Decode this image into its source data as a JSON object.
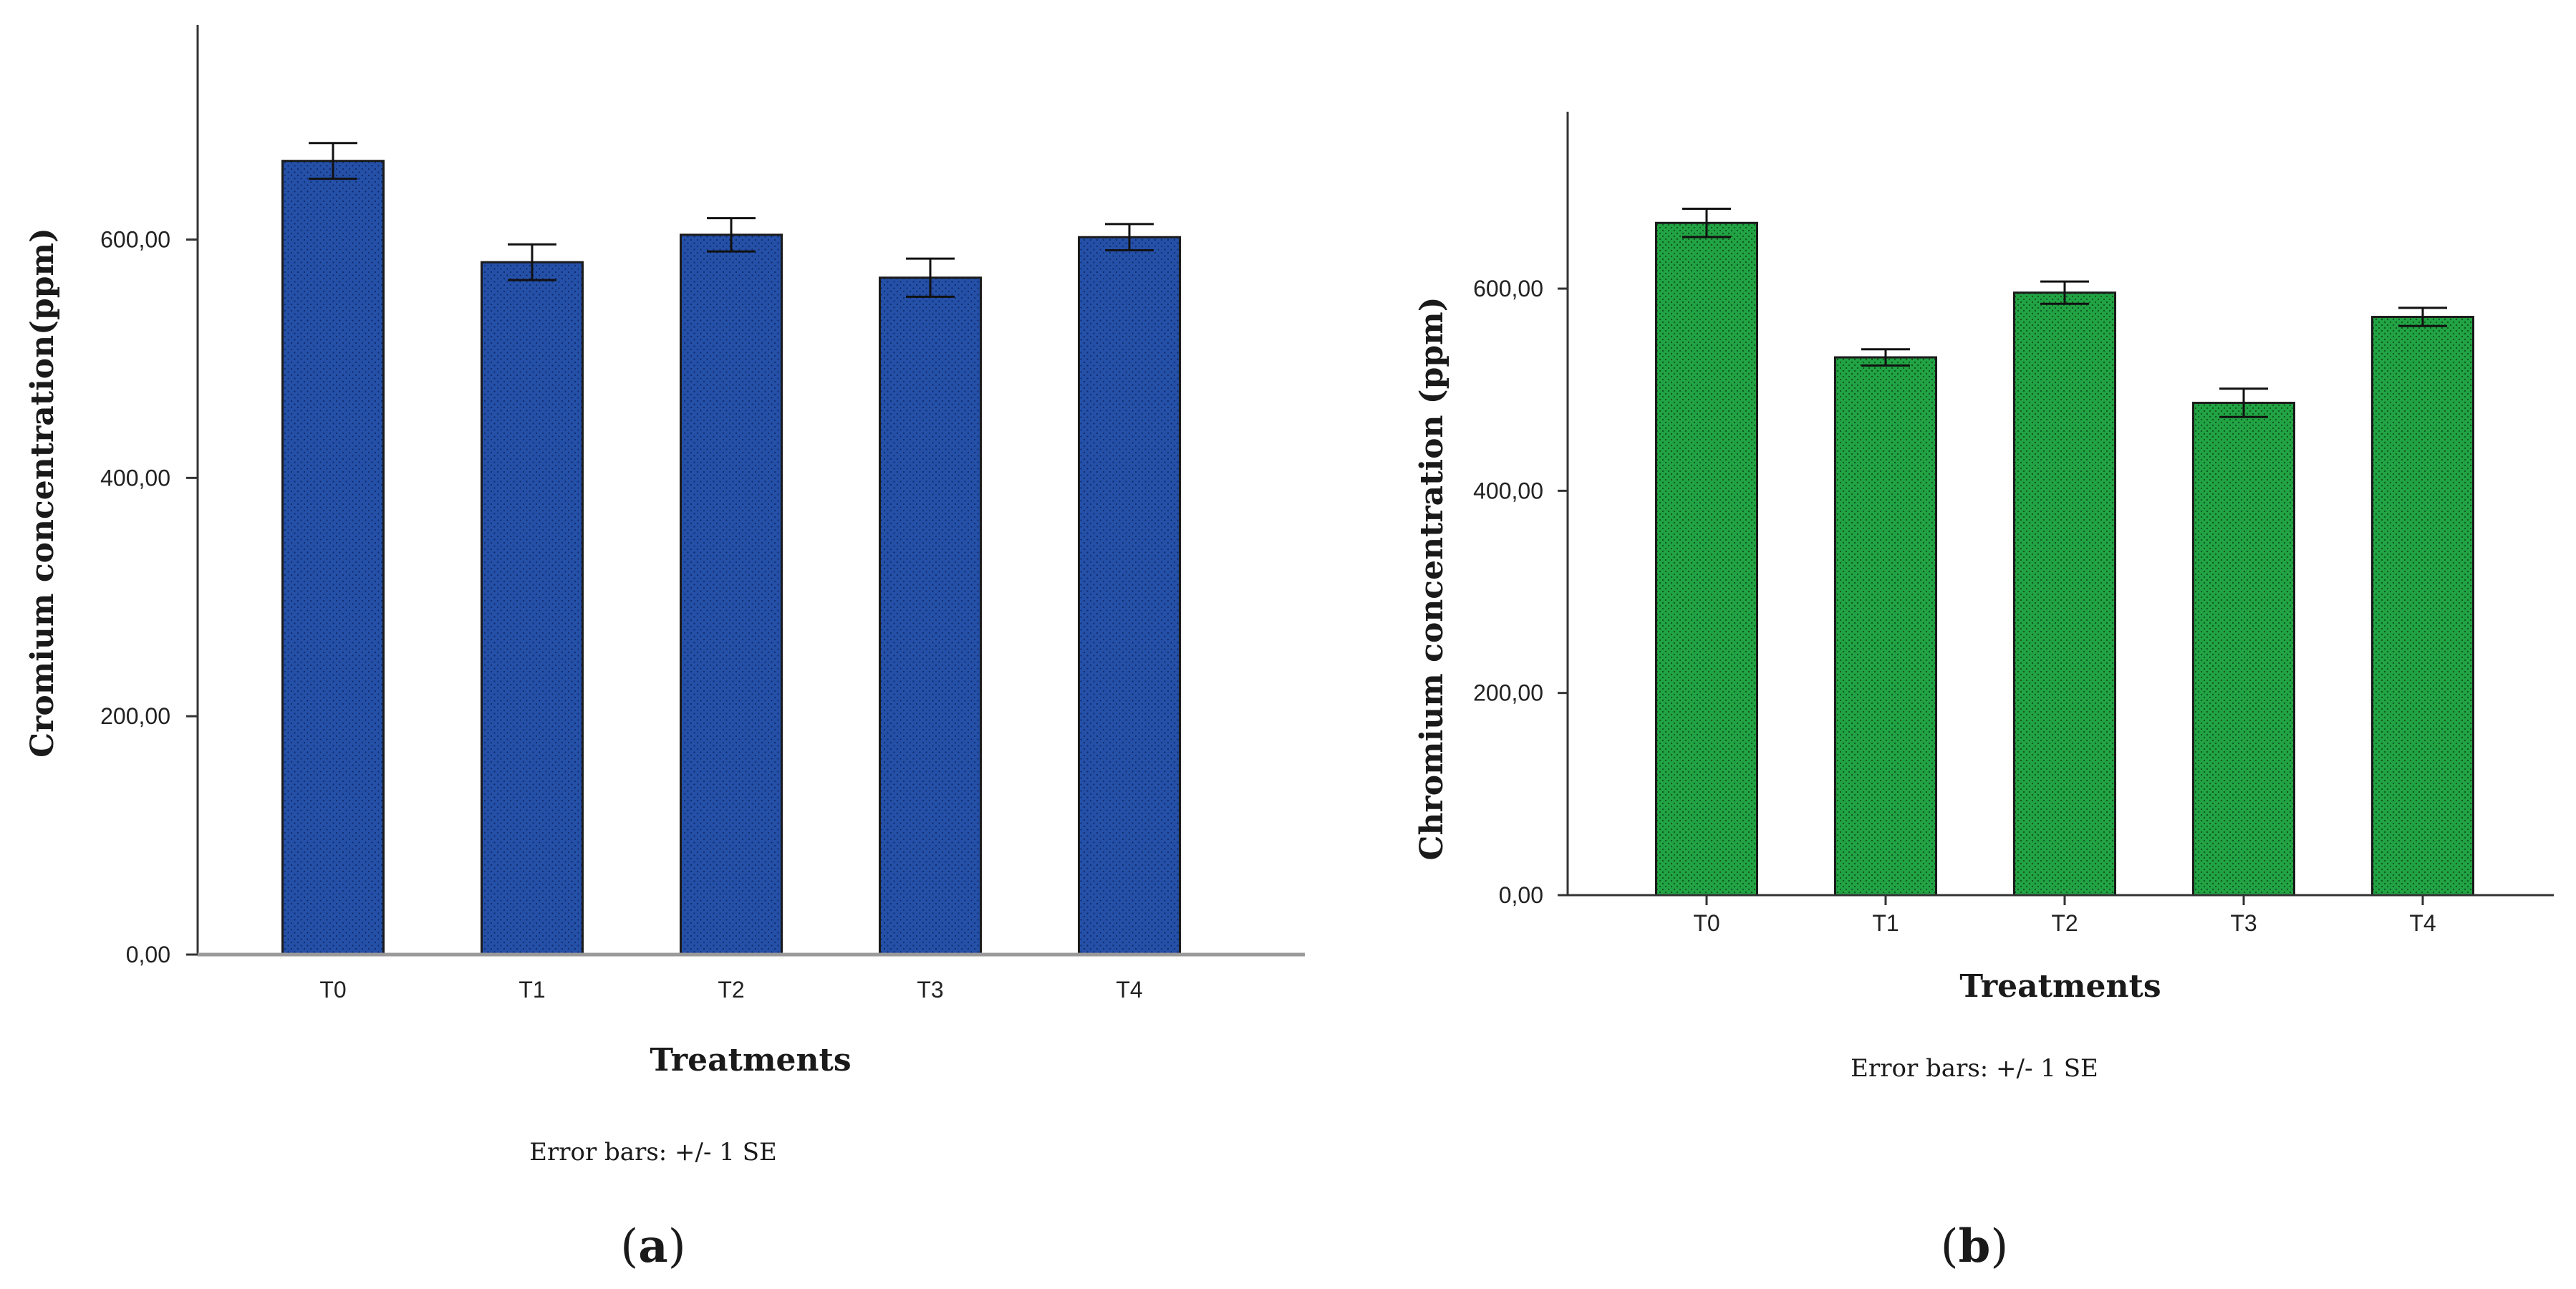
{
  "chart_data": [
    {
      "panel": "a",
      "type": "bar",
      "categories": [
        "T0",
        "T1",
        "T2",
        "T3",
        "T4"
      ],
      "values": [
        666,
        581,
        604,
        568,
        602
      ],
      "errors": [
        15,
        15,
        14,
        16,
        11
      ],
      "xlabel": "Treatments",
      "ylabel": "Cromium concentration(ppm)",
      "ylim": [
        0,
        780
      ],
      "yticks": [
        0,
        200,
        400,
        600
      ],
      "ytick_labels": [
        "0,00",
        "200,00",
        "400,00",
        "600,00"
      ],
      "error_note": "Error bars: +/- 1 SE",
      "panel_label_open": "(",
      "panel_label_letter": "a",
      "panel_label_close": ")",
      "bar_color": "#2550a8",
      "grid": false
    },
    {
      "panel": "b",
      "type": "bar",
      "categories": [
        "T0",
        "T1",
        "T2",
        "T3",
        "T4"
      ],
      "values": [
        665,
        532,
        596,
        487,
        572
      ],
      "errors": [
        14,
        8,
        11,
        14,
        9
      ],
      "xlabel": "Treatments",
      "ylabel": "Chromium concentration (ppm)",
      "ylim": [
        0,
        775
      ],
      "yticks": [
        0,
        200,
        400,
        600
      ],
      "ytick_labels": [
        "0,00",
        "200,00",
        "400,00",
        "600,00"
      ],
      "error_note": "Error bars: +/- 1 SE",
      "panel_label_open": "(",
      "panel_label_letter": "b",
      "panel_label_close": ")",
      "bar_color": "#22a444",
      "grid": false
    }
  ]
}
